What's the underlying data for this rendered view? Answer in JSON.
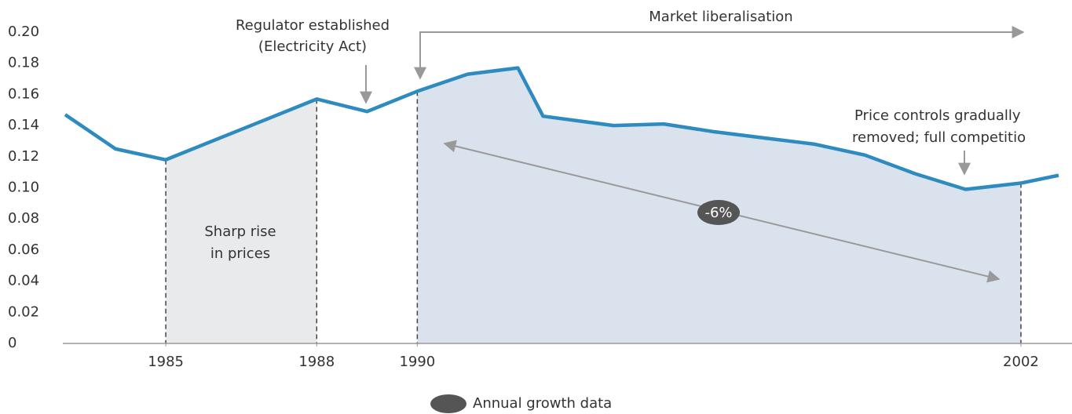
{
  "chart_data": {
    "type": "line",
    "x": [
      1983,
      1984,
      1985,
      1986,
      1987,
      1988,
      1989,
      1990,
      1991,
      1992,
      1992.5,
      1993.9,
      1994.9,
      1995.9,
      1996.9,
      1997.9,
      1998.9,
      1999.9,
      2000.9,
      2002,
      2002.75
    ],
    "series": [
      {
        "color": "#2e8bc0",
        "values": [
          0.147,
          0.125,
          0.118,
          0.131,
          0.144,
          0.157,
          0.149,
          0.162,
          0.173,
          0.177,
          0.146,
          0.14,
          0.141,
          0.136,
          0.132,
          0.128,
          0.121,
          0.109,
          0.099,
          0.103,
          0.108
        ]
      }
    ],
    "xlim": [
      1983,
      2002.75
    ],
    "xticks": [
      1985,
      1988,
      1990,
      2002
    ],
    "ylim": [
      0,
      0.2
    ],
    "yticks": [
      0,
      0.02,
      0.04,
      0.06,
      0.08,
      {
        "value": 0.1,
        "label": "0.10"
      },
      0.12,
      0.14,
      0.16,
      0.18,
      {
        "value": 0.2,
        "label": "0.20"
      }
    ],
    "shaded_spans": [
      {
        "from": 1985,
        "to": 1988,
        "color": "#e9eaec"
      },
      {
        "from": 1990,
        "to": 2002,
        "color": "#dae3ed"
      }
    ],
    "annotations": {
      "regulator": [
        "Regulator established",
        "(Electricity Act)"
      ],
      "liberalisation": "Market liberalisation",
      "price_controls": [
        "Price controls gradually",
        "removed; full competitio"
      ],
      "sharp_rise": [
        "Sharp rise",
        "in prices"
      ],
      "growth": "-6%"
    },
    "legend_label": "Annual growth data"
  }
}
